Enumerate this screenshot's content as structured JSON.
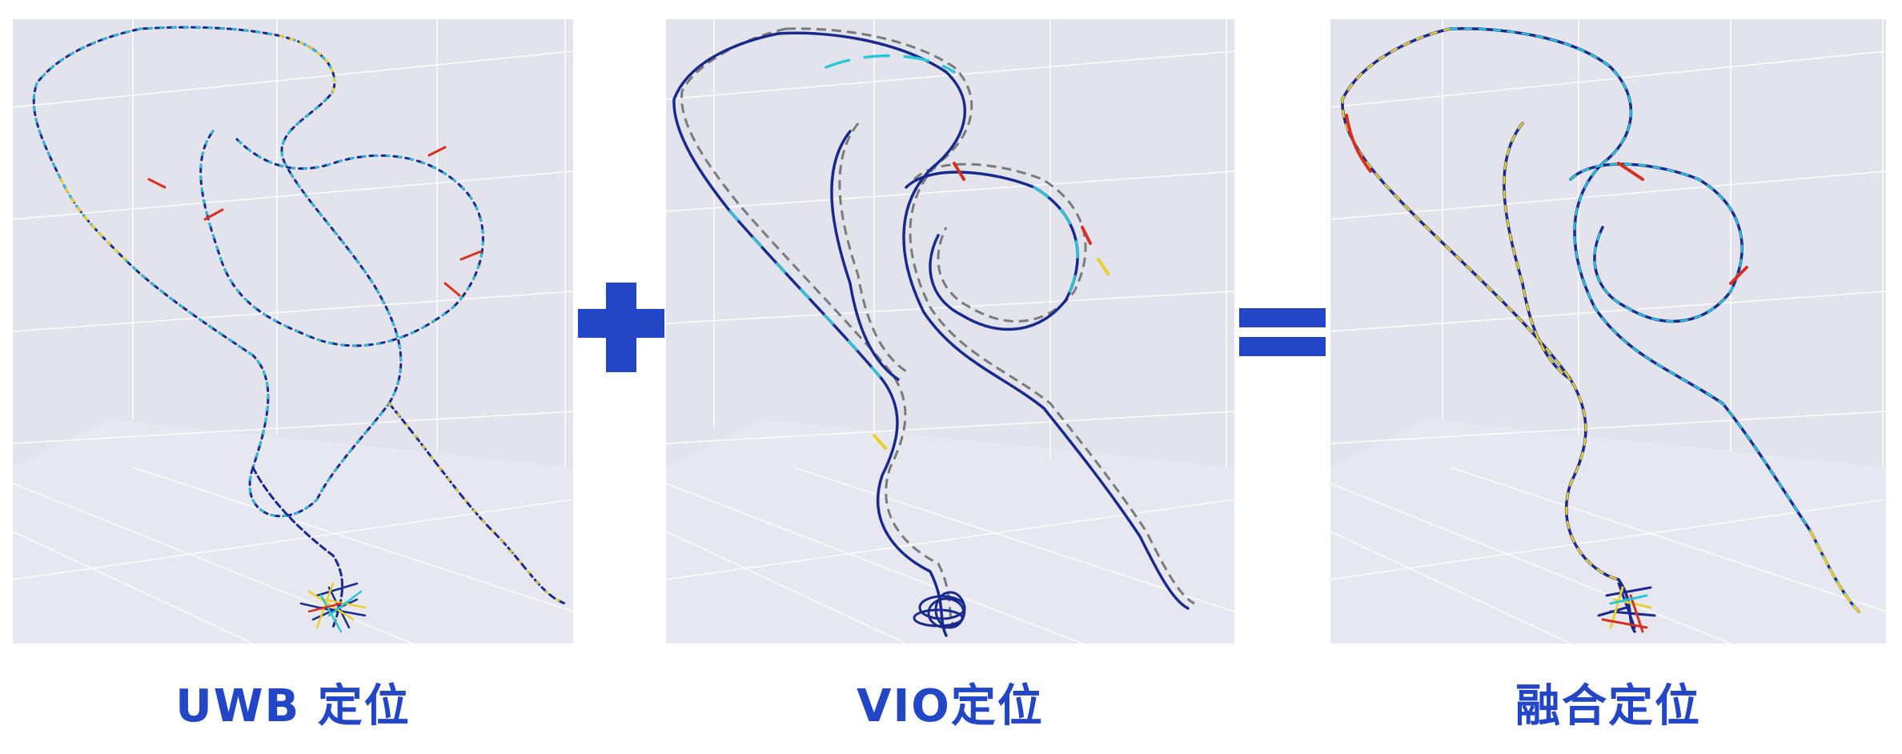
{
  "captions": {
    "uwb": "UWB 定位",
    "vio": "VIO定位",
    "fusion": "融合定位"
  },
  "operators": {
    "plus": "+",
    "equals": "="
  },
  "colors": {
    "accent": "#2246c6",
    "panel_bg": "#e7e7ef",
    "grid": "#ffffff",
    "trajectory_dark": "#1a2a8c",
    "trajectory_cyan": "#28c8d8",
    "trajectory_yellow": "#e8d030",
    "trajectory_red": "#d83020",
    "ground_truth_dash": "#7a7a7a"
  }
}
